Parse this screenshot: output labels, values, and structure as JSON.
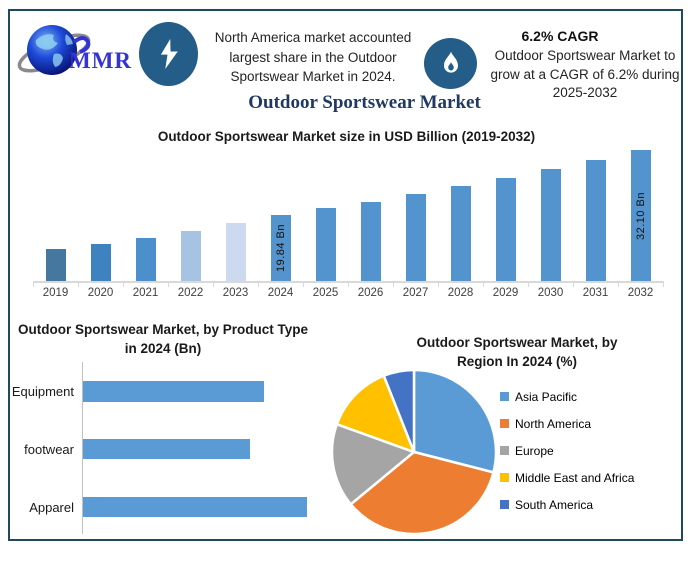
{
  "frame": {
    "border_color": "#1e4a5c"
  },
  "header": {
    "logo_text": "MMR",
    "logo_colors": {
      "globe": "#1b3fd0",
      "text": "#3434d6",
      "swoosh": "#8a8a8a"
    },
    "badge_color": "#235d88",
    "insight_share": {
      "icon": "lightning-bolt",
      "text": "North America market accounted largest share in the Outdoor Sportswear Market in 2024."
    },
    "insight_cagr": {
      "icon": "flame",
      "title": "6.2% CAGR",
      "text": "Outdoor Sportswear Market to grow at a CAGR of 6.2% during 2025-2032"
    }
  },
  "main_title": {
    "text": "Outdoor Sportswear Market",
    "color": "#1f3864"
  },
  "chart_data": [
    {
      "id": "market_size_by_year",
      "type": "bar",
      "title": "Outdoor Sportswear Market size in USD Billion (2019-2032)",
      "unit": "USD Bn",
      "categories": [
        "2019",
        "2020",
        "2021",
        "2022",
        "2023",
        "2024",
        "2025",
        "2026",
        "2027",
        "2028",
        "2029",
        "2030",
        "2031",
        "2032"
      ],
      "values": [
        13.5,
        14.4,
        15.6,
        16.8,
        18.3,
        19.84,
        21.07,
        22.38,
        23.76,
        25.24,
        26.8,
        28.46,
        30.23,
        32.1
      ],
      "data_labels": {
        "2024": "19.84 Bn",
        "2032": "32.10 Bn"
      },
      "ylim": [
        7.4,
        32.1
      ],
      "bar_colors": [
        "#45779f",
        "#3e82bf",
        "#4b90cc",
        "#a6c3e3",
        "#cdd9ee",
        "#5494ce",
        "#5494ce",
        "#5494ce",
        "#5494ce",
        "#5494ce",
        "#5494ce",
        "#5494ce",
        "#5494ce",
        "#5494ce"
      ],
      "axis_color": "#d9d9d9",
      "tick_label_color": "#3f3f3f"
    },
    {
      "id": "by_product_type",
      "type": "bar",
      "orientation": "horizontal",
      "title": "Outdoor Sportswear Market, by Product Type in 2024 (Bn)",
      "categories": [
        "Equipment",
        "footwear",
        "Apparel"
      ],
      "values_relative": [
        0.81,
        0.745,
        1.0
      ],
      "bar_color": "#5b9bd5",
      "axis_color": "#c0c0c0"
    },
    {
      "id": "by_region",
      "type": "pie",
      "title": "Outdoor Sportswear Market, by Region In 2024 (%)",
      "labels": [
        "Asia Pacific",
        "North America",
        "Europe",
        "Middle East and Africa",
        "South America"
      ],
      "values_pct": [
        29,
        35,
        16.5,
        13.5,
        6
      ],
      "colors": [
        "#5b9bd5",
        "#ed7d31",
        "#a5a5a5",
        "#ffc000",
        "#4472c4"
      ],
      "legend_position": "right"
    }
  ]
}
